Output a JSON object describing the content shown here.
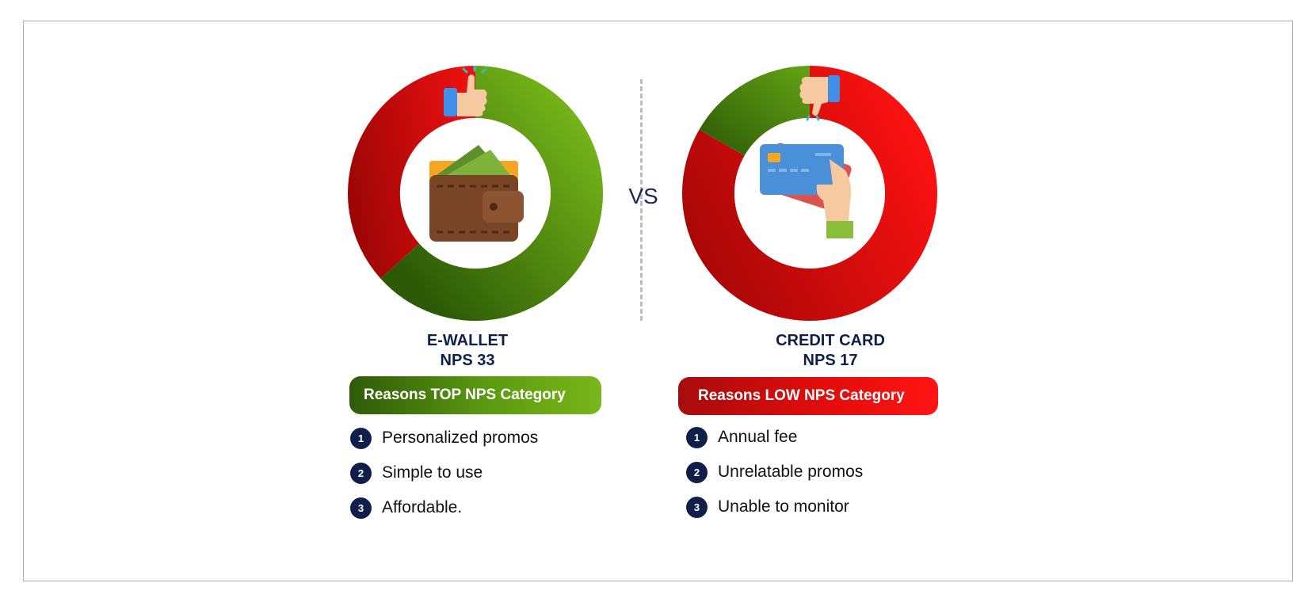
{
  "divider_label": "VS",
  "ewallet": {
    "name": "E-WALLET",
    "nps": "NPS 33",
    "category_label": "Reasons TOP NPS Category",
    "reasons": [
      "Personalized promos",
      "Simple to use",
      "Affordable."
    ],
    "reason_numbers": [
      "1",
      "2",
      "3"
    ],
    "icons": [
      "thumbs-up-icon",
      "wallet-icon"
    ],
    "colors": {
      "promoter": "#79b61a",
      "detractor": "#e20c0c"
    }
  },
  "credit_card": {
    "name": "CREDIT CARD",
    "nps": "NPS 17",
    "category_label": "Reasons LOW NPS Category",
    "reasons": [
      "Annual fee",
      "Unrelatable promos",
      "Unable to monitor"
    ],
    "reason_numbers": [
      "1",
      "2",
      "3"
    ],
    "icons": [
      "thumbs-down-icon",
      "credit-card-hand-icon"
    ],
    "colors": {
      "promoter": "#5b9a10",
      "detractor": "#ff1414"
    }
  }
}
